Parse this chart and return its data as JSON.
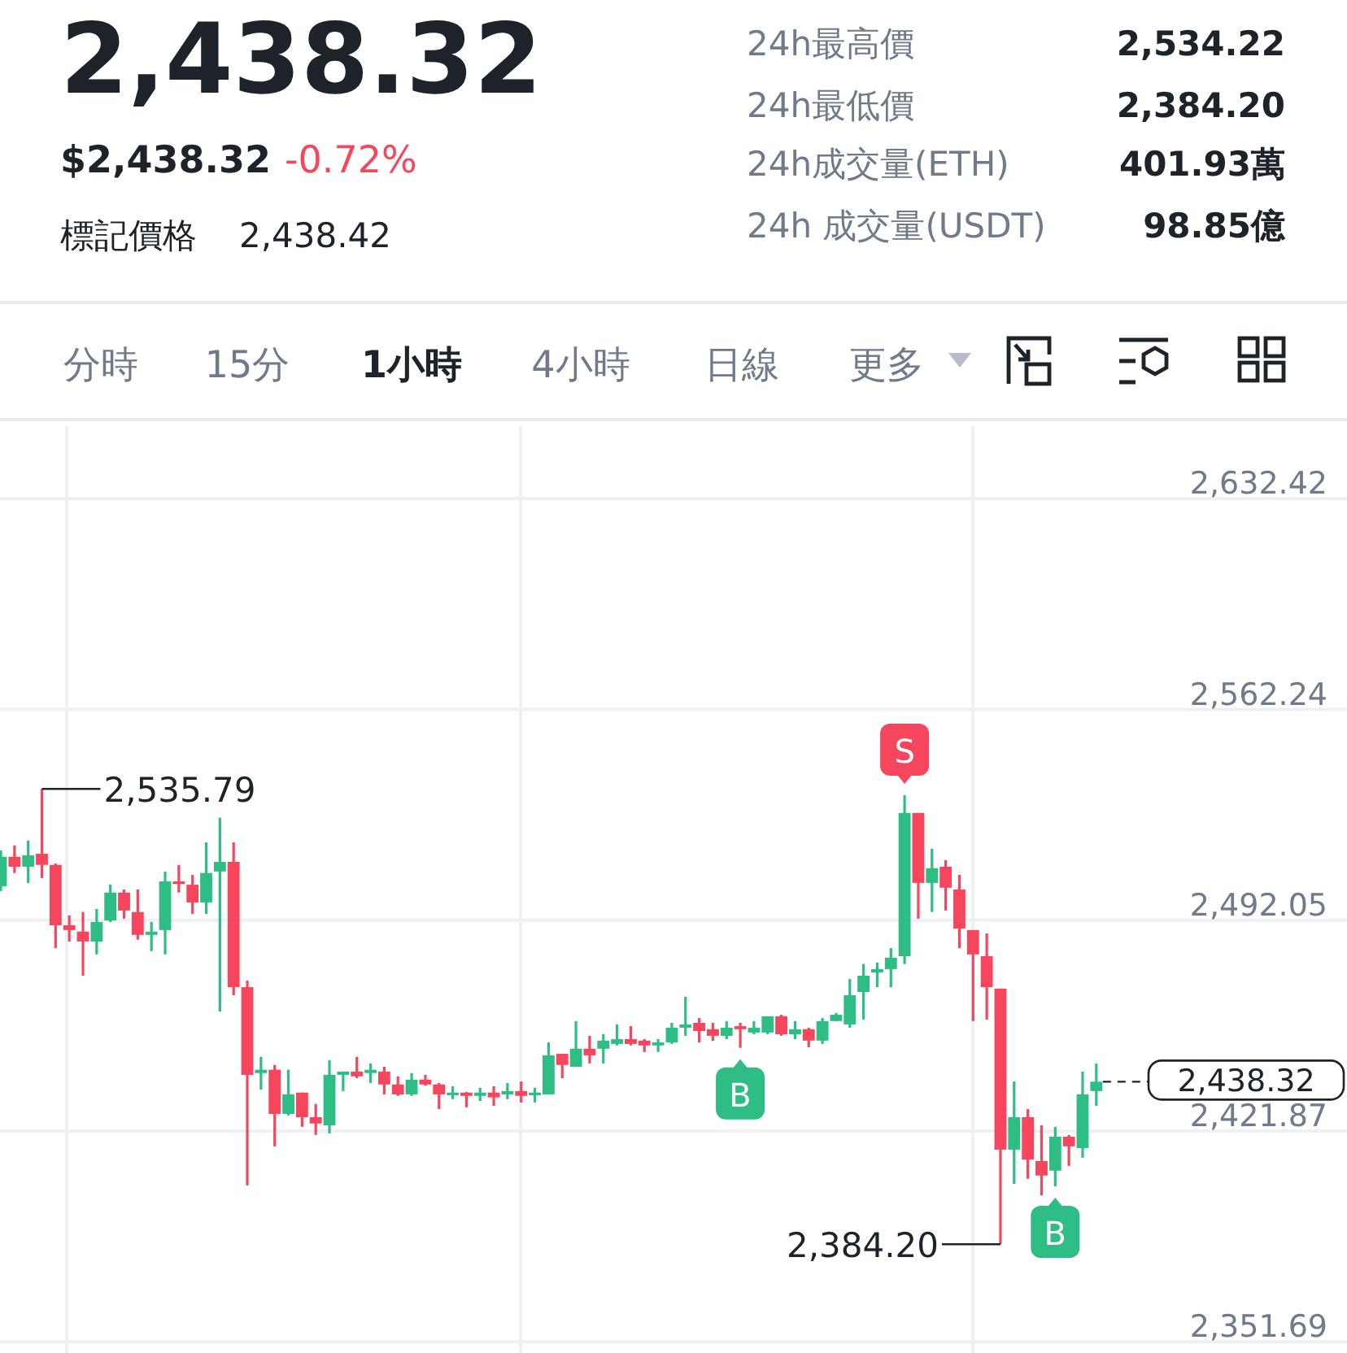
{
  "chart_data": {
    "type": "candlestick",
    "title": "2,438.32",
    "annotations": [
      "$2,438.32",
      "-0.72%",
      "標記價格",
      "2,438.42",
      "24h最高價",
      "2,534.22",
      "24h最低價",
      "2,384.20",
      "24h成交量(ETH)",
      "401.93萬",
      "24h 成交量(USDT)",
      "98.85億",
      "分時",
      "15分",
      "1小時",
      "4小時",
      "日線",
      "更多",
      {
        "text": "S",
        "y": 2533.7
      },
      {
        "text": "B",
        "y": 2449.6
      },
      {
        "text": "B",
        "y": 2403.5
      },
      "2,535.79",
      "2,384.20"
    ],
    "categories": [
      null,
      null,
      null,
      null,
      null,
      null,
      null,
      null,
      null,
      null,
      null,
      null,
      null,
      null,
      null,
      null,
      null,
      null,
      null,
      null,
      null,
      null,
      null,
      null,
      null,
      null,
      null,
      null,
      null,
      null,
      null,
      null,
      null,
      null,
      null,
      null,
      null,
      null,
      null,
      null,
      null,
      null,
      null,
      null,
      null,
      null,
      null,
      null,
      null,
      null,
      null,
      null,
      null,
      null,
      null,
      null,
      null,
      null,
      null,
      null,
      null,
      null,
      null,
      null,
      null,
      null,
      null,
      null,
      null,
      null,
      null,
      null,
      null,
      null,
      null,
      null,
      null,
      null,
      null,
      null,
      null
    ],
    "ohlc": [
      [
        2503.4,
        2515.3,
        2501.8,
        2513.2
      ],
      [
        2513.2,
        2517.0,
        2507.8,
        2509.9
      ],
      [
        2509.9,
        2518.6,
        2504.5,
        2513.7
      ],
      [
        2514.2,
        2535.79,
        2506.1,
        2510.5
      ],
      [
        2510.5,
        2511.0,
        2482.8,
        2490.4
      ],
      [
        2490.4,
        2493.7,
        2485.0,
        2488.8
      ],
      [
        2488.3,
        2494.8,
        2473.6,
        2485.0
      ],
      [
        2485.0,
        2495.8,
        2480.7,
        2491.5
      ],
      [
        2492.0,
        2504.0,
        2491.5,
        2501.3
      ],
      [
        2501.3,
        2502.3,
        2492.6,
        2495.3
      ],
      [
        2494.8,
        2502.3,
        2485.6,
        2487.2
      ],
      [
        2487.2,
        2491.5,
        2481.8,
        2488.3
      ],
      [
        2488.8,
        2508.3,
        2480.7,
        2505.0
      ],
      [
        2505.0,
        2510.5,
        2501.3,
        2504.5
      ],
      [
        2503.9,
        2507.2,
        2494.2,
        2498.0
      ],
      [
        2498.0,
        2518.0,
        2494.2,
        2507.8
      ],
      [
        2508.3,
        2526.2,
        2461.7,
        2511.5
      ],
      [
        2511.5,
        2518.0,
        2467.1,
        2469.8
      ],
      [
        2469.8,
        2472.0,
        2403.8,
        2440.6
      ],
      [
        2441.2,
        2446.6,
        2435.7,
        2442.3
      ],
      [
        2442.3,
        2443.9,
        2416.8,
        2427.6
      ],
      [
        2427.6,
        2442.3,
        2427.1,
        2434.1
      ],
      [
        2434.7,
        2434.7,
        2423.3,
        2426.5
      ],
      [
        2426.5,
        2430.9,
        2420.6,
        2424.4
      ],
      [
        2423.8,
        2445.5,
        2421.1,
        2440.6
      ],
      [
        2440.6,
        2441.7,
        2435.2,
        2441.7
      ],
      [
        2441.7,
        2446.6,
        2439.5,
        2440.1
      ],
      [
        2441.2,
        2444.4,
        2437.9,
        2442.3
      ],
      [
        2441.7,
        2443.3,
        2434.1,
        2437.4
      ],
      [
        2437.4,
        2440.1,
        2433.6,
        2434.1
      ],
      [
        2434.1,
        2441.2,
        2433.6,
        2439.0
      ],
      [
        2439.0,
        2440.6,
        2437.0,
        2437.4
      ],
      [
        2437.4,
        2437.9,
        2429.2,
        2434.1
      ],
      [
        2434.1,
        2436.8,
        2432.5,
        2434.7
      ],
      [
        2434.7,
        2434.9,
        2429.8,
        2433.6
      ],
      [
        2433.6,
        2436.3,
        2431.9,
        2434.7
      ],
      [
        2434.7,
        2436.8,
        2430.3,
        2433.1
      ],
      [
        2434.1,
        2437.9,
        2432.5,
        2435.2
      ],
      [
        2435.2,
        2438.4,
        2431.4,
        2433.6
      ],
      [
        2434.1,
        2436.3,
        2431.4,
        2434.7
      ],
      [
        2434.1,
        2451.4,
        2434.1,
        2447.1
      ],
      [
        2447.6,
        2447.6,
        2439.5,
        2443.9
      ],
      [
        2443.3,
        2458.5,
        2443.3,
        2449.3
      ],
      [
        2449.3,
        2453.6,
        2444.4,
        2447.1
      ],
      [
        2449.3,
        2454.2,
        2444.4,
        2452.0
      ],
      [
        2450.9,
        2457.4,
        2450.4,
        2452.5
      ],
      [
        2452.5,
        2456.8,
        2450.4,
        2450.9
      ],
      [
        2452.0,
        2452.5,
        2448.2,
        2450.4
      ],
      [
        2450.4,
        2452.5,
        2448.2,
        2451.4
      ],
      [
        2451.4,
        2457.9,
        2450.9,
        2456.3
      ],
      [
        2456.3,
        2466.6,
        2453.6,
        2457.4
      ],
      [
        2457.9,
        2459.5,
        2451.4,
        2455.2
      ],
      [
        2455.8,
        2457.9,
        2451.9,
        2453.6
      ],
      [
        2453.6,
        2458.5,
        2452.5,
        2456.3
      ],
      [
        2456.8,
        2457.9,
        2449.6,
        2455.8
      ],
      [
        2454.7,
        2458.5,
        2454.1,
        2456.3
      ],
      [
        2454.7,
        2460.1,
        2454.1,
        2460.1
      ],
      [
        2460.1,
        2460.6,
        2453.6,
        2454.1
      ],
      [
        2454.1,
        2458.5,
        2452.5,
        2455.8
      ],
      [
        2455.8,
        2456.3,
        2449.8,
        2452.0
      ],
      [
        2452.0,
        2459.5,
        2450.9,
        2458.5
      ],
      [
        2458.5,
        2461.2,
        2458.5,
        2460.6
      ],
      [
        2457.4,
        2472.5,
        2456.3,
        2467.1
      ],
      [
        2468.2,
        2477.5,
        2459.0,
        2473.6
      ],
      [
        2474.7,
        2478.0,
        2469.8,
        2475.8
      ],
      [
        2475.8,
        2482.8,
        2469.8,
        2479.6
      ],
      [
        2480.1,
        2533.7,
        2477.5,
        2527.8
      ],
      [
        2527.8,
        2527.8,
        2492.6,
        2504.5
      ],
      [
        2504.5,
        2515.9,
        2494.8,
        2509.4
      ],
      [
        2509.9,
        2512.1,
        2495.3,
        2502.9
      ],
      [
        2502.3,
        2507.2,
        2482.8,
        2489.3
      ],
      [
        2488.8,
        2488.8,
        2458.5,
        2480.7
      ],
      [
        2480.1,
        2487.7,
        2459.0,
        2469.8
      ],
      [
        2469.3,
        2469.3,
        2384.2,
        2415.7
      ],
      [
        2415.7,
        2438.4,
        2404.3,
        2426.5
      ],
      [
        2426.5,
        2429.2,
        2406.0,
        2412.4
      ],
      [
        2411.9,
        2423.8,
        2400.5,
        2407.1
      ],
      [
        2408.7,
        2423.3,
        2403.5,
        2420.0
      ],
      [
        2420.0,
        2420.6,
        2410.3,
        2416.8
      ],
      [
        2416.2,
        2441.7,
        2413.0,
        2434.1
      ],
      [
        2435.2,
        2444.4,
        2430.3,
        2438.32
      ]
    ],
    "ylim": [
      2348.0,
      2656.6
    ],
    "yticks": [
      {
        "value": 2351.69,
        "label": "2,351.69"
      },
      {
        "value": 2421.87,
        "label": "2,421.87"
      },
      {
        "value": 2492.05,
        "label": "2,492.05"
      },
      {
        "value": 2562.24,
        "label": "2,562.24"
      },
      {
        "value": 2632.42,
        "label": "2,632.42"
      }
    ],
    "grid": true,
    "ref_lines": [
      {
        "axis": "y",
        "value": 2438.32,
        "label": "2,438.32",
        "line_style": "dashed"
      }
    ]
  }
}
